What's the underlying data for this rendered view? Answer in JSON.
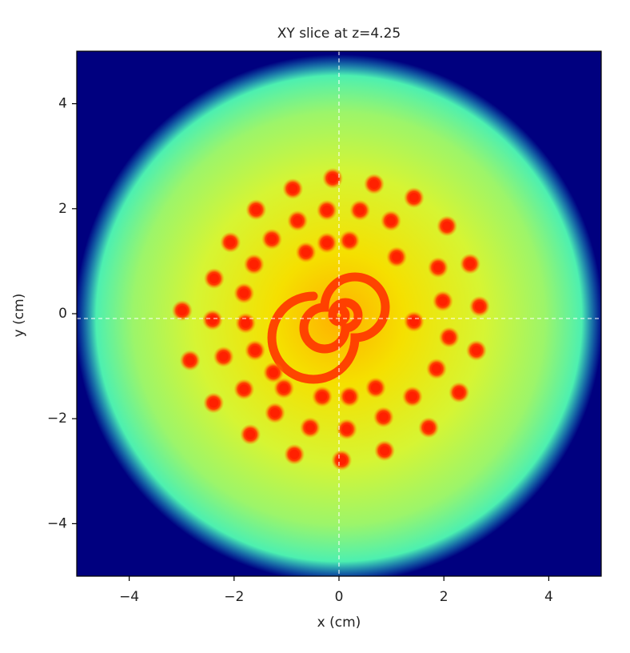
{
  "chart_data": {
    "type": "scatter",
    "title": "XY slice at z=4.25",
    "x_label": "x (cm)",
    "y_label": "y (cm)",
    "xlim": [
      -5,
      5
    ],
    "ylim": [
      -5,
      5
    ],
    "xticks": [
      {
        "value": -4,
        "label": "−4"
      },
      {
        "value": -2,
        "label": "−2"
      },
      0,
      2,
      4
    ],
    "yticks": [
      {
        "value": -4,
        "label": "−4"
      },
      {
        "value": -2,
        "label": "−2"
      },
      0,
      2,
      4
    ],
    "color": "#ff2000",
    "x": [
      -0.12,
      -0.88,
      0.67,
      1.43,
      -1.58,
      -0.23,
      0.4,
      -0.79,
      0.99,
      2.06,
      -2.07,
      -1.28,
      -0.23,
      0.2,
      -0.63,
      1.1,
      -1.62,
      1.89,
      2.5,
      -2.38,
      -1.81,
      1.98,
      2.68,
      -2.99,
      -2.41,
      -1.78,
      1.43,
      -1.6,
      -2.2,
      -2.84,
      2.1,
      2.62,
      -1.25,
      1.86,
      -1.81,
      -1.05,
      -0.32,
      0.2,
      0.7,
      1.4,
      2.29,
      -2.39,
      -1.22,
      0.85,
      -0.55,
      0.15,
      1.71,
      -1.69,
      -0.85,
      0.05,
      0.87
    ],
    "y": [
      2.58,
      2.38,
      2.47,
      2.21,
      1.98,
      1.97,
      1.97,
      1.77,
      1.77,
      1.67,
      1.36,
      1.42,
      1.35,
      1.39,
      1.17,
      1.08,
      0.94,
      0.88,
      0.95,
      0.67,
      0.39,
      0.24,
      0.14,
      0.06,
      -0.12,
      -0.18,
      -0.15,
      -0.7,
      -0.82,
      -0.89,
      -0.45,
      -0.7,
      -1.12,
      -1.05,
      -1.44,
      -1.42,
      -1.58,
      -1.58,
      -1.41,
      -1.58,
      -1.5,
      -1.7,
      -1.89,
      -1.97,
      -2.17,
      -2.2,
      -2.17,
      -2.3,
      -2.68,
      -2.79,
      -2.61
    ]
  }
}
